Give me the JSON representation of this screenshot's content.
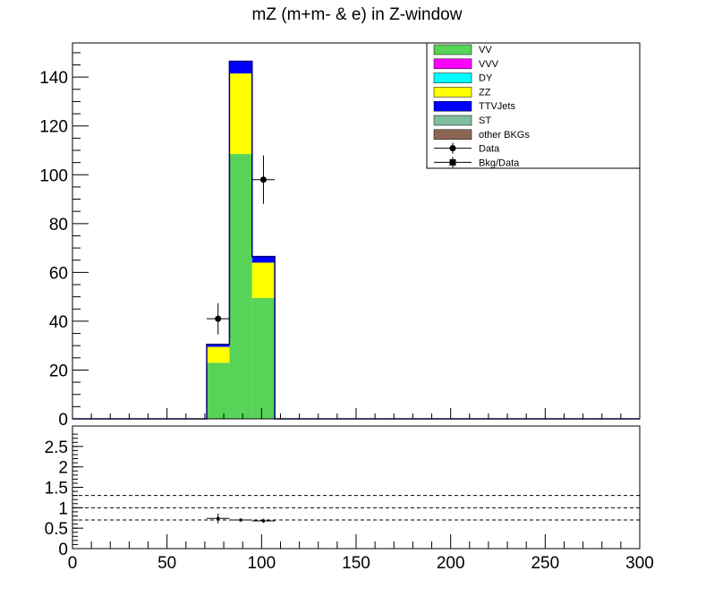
{
  "title": "mZ (m+m- & e) in Z-window",
  "colors": {
    "VV": "#57d357",
    "VVV": "#ff00ff",
    "DY": "#00ffff",
    "ZZ": "#ffff00",
    "TTVJets": "#0000ff",
    "ST": "#7fbf9f",
    "other BKGs": "#8b6652",
    "data": "#000000",
    "hist_edge": "#000080"
  },
  "legend": [
    {
      "label": "VV",
      "kind": "fill",
      "color_key": "VV"
    },
    {
      "label": "VVV",
      "kind": "fill",
      "color_key": "VVV"
    },
    {
      "label": "DY",
      "kind": "fill",
      "color_key": "DY"
    },
    {
      "label": "ZZ",
      "kind": "fill",
      "color_key": "ZZ"
    },
    {
      "label": "TTVJets",
      "kind": "fill",
      "color_key": "TTVJets"
    },
    {
      "label": "ST",
      "kind": "fill",
      "color_key": "ST"
    },
    {
      "label": "other BKGs",
      "kind": "fill",
      "color_key": "other BKGs"
    },
    {
      "label": "Data",
      "kind": "circle"
    },
    {
      "label": "Bkg/Data",
      "kind": "square"
    }
  ],
  "chart_data": [
    {
      "type": "bar",
      "subtype": "stacked-histogram",
      "title": "mZ (m+m- & e) in Z-window",
      "xlim": [
        0,
        300
      ],
      "ylim": [
        0,
        154
      ],
      "x_ticks": [
        0,
        50,
        100,
        150,
        200,
        250,
        300
      ],
      "y_ticks": [
        0,
        20,
        40,
        60,
        80,
        100,
        120,
        140
      ],
      "bin_edges": [
        71,
        83,
        95,
        107
      ],
      "series": [
        {
          "name": "VV",
          "values": [
            23,
            108.5,
            49.5
          ]
        },
        {
          "name": "ZZ",
          "values": [
            6.5,
            33,
            14.5
          ]
        },
        {
          "name": "TTVJets",
          "values": [
            1,
            5,
            2.5
          ]
        }
      ],
      "data_points": [
        {
          "x": 77,
          "y": 41,
          "yerr": 6.4,
          "xerr": 6
        },
        {
          "x": 101,
          "y": 98,
          "yerr": 9.9,
          "xerr": 6
        }
      ],
      "legend_position": "top-right",
      "grid": false
    },
    {
      "type": "scatter",
      "subtype": "ratio",
      "xlim": [
        0,
        300
      ],
      "ylim": [
        0,
        3
      ],
      "x_ticks": [
        0,
        50,
        100,
        150,
        200,
        250,
        300
      ],
      "y_ticks": [
        0,
        0.5,
        1,
        1.5,
        2,
        2.5
      ],
      "reference_lines": [
        0.7,
        1.0,
        1.3
      ],
      "points": [
        {
          "x": 77,
          "y": 0.74,
          "yerr": 0.12,
          "xerr": 6
        },
        {
          "x": 89,
          "y": 0.7,
          "yerr": 0.04,
          "xerr": 6
        },
        {
          "x": 101,
          "y": 0.68,
          "yerr": 0.05,
          "xerr": 6
        }
      ]
    }
  ]
}
